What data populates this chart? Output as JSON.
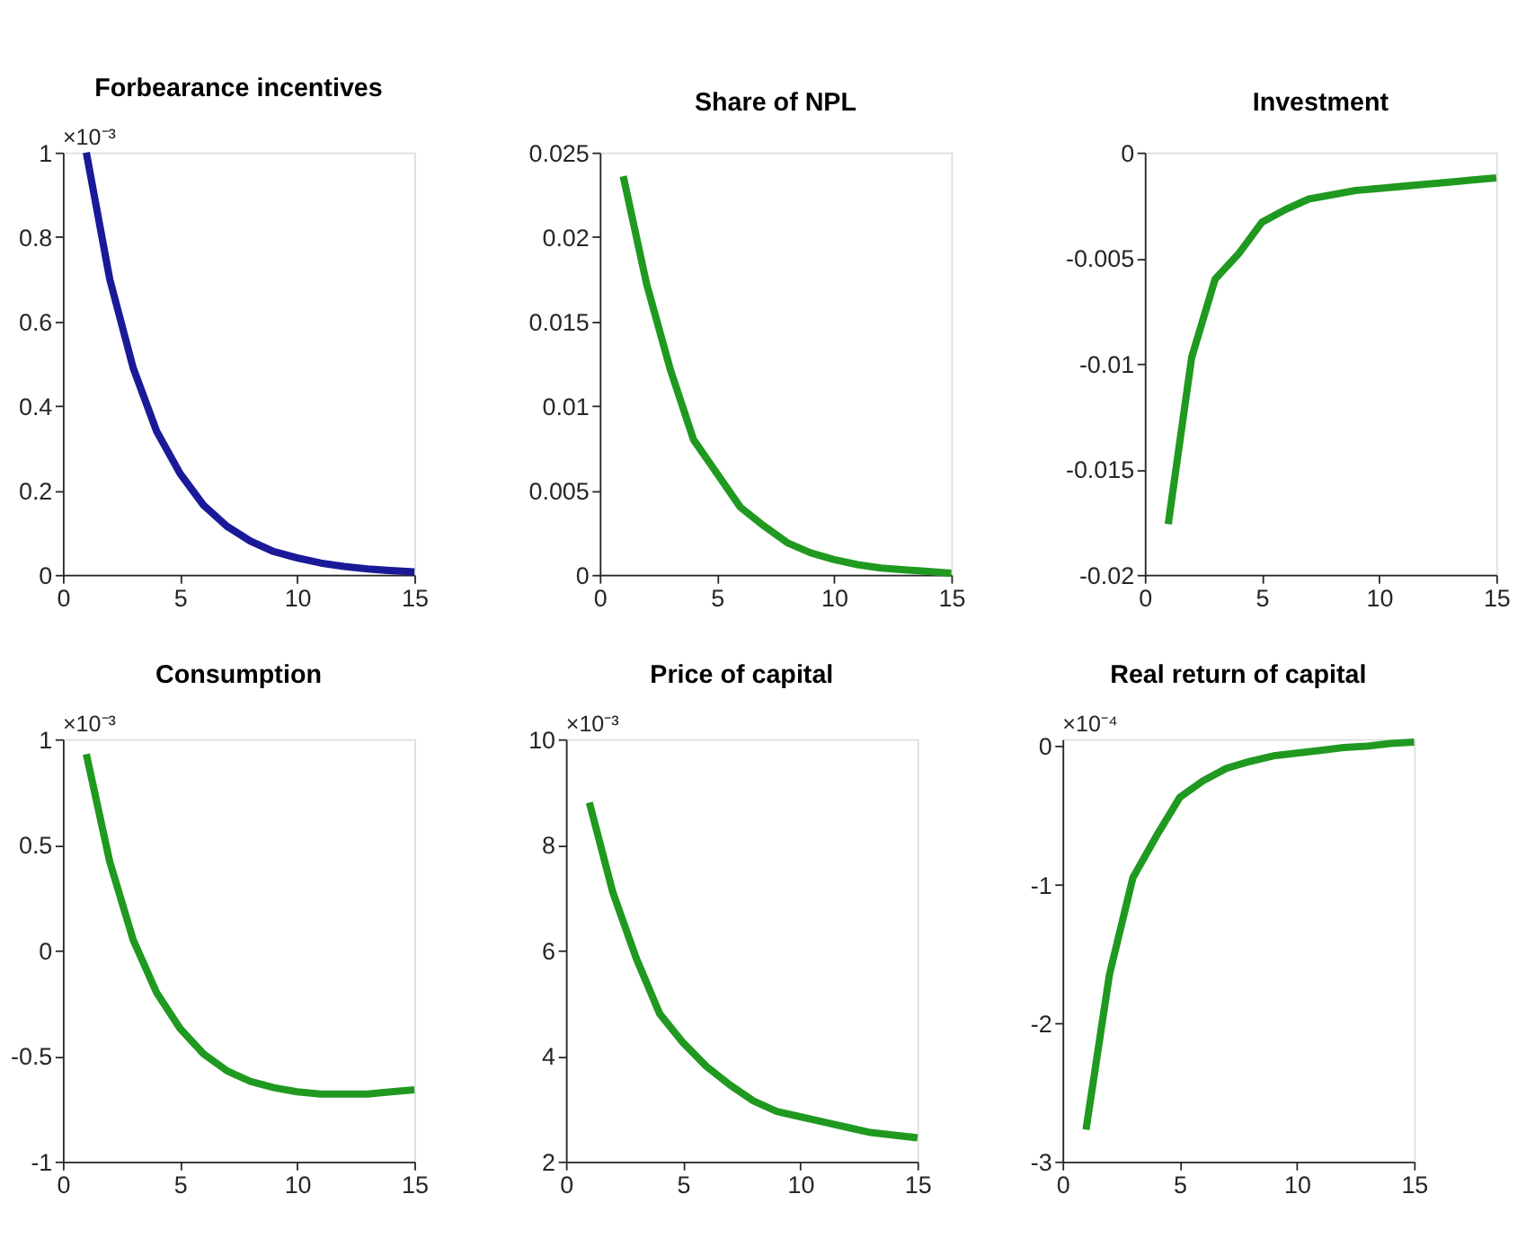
{
  "chart_data": [
    {
      "type": "line",
      "title": "Forbearance incentives",
      "annotations": [
        "×10⁻³"
      ],
      "x": [
        1,
        2,
        3,
        4,
        5,
        6,
        7,
        8,
        9,
        10,
        11,
        12,
        13,
        14,
        15
      ],
      "line_style": "solid",
      "series": [
        {
          "color": "#1a1a99",
          "values": [
            1.0,
            0.7,
            0.49,
            0.34,
            0.24,
            0.165,
            0.115,
            0.08,
            0.055,
            0.04,
            0.028,
            0.02,
            0.014,
            0.01,
            0.007
          ]
        }
      ],
      "xlim": [
        0,
        15
      ],
      "xticks": [
        0,
        5,
        10,
        15
      ],
      "ylim": [
        0,
        1
      ],
      "yticks": [
        0,
        0.2,
        0.4,
        0.6,
        0.8,
        1
      ]
    },
    {
      "type": "line",
      "title": "Share of NPL",
      "x": [
        1,
        2,
        3,
        4,
        5,
        6,
        7,
        8,
        9,
        10,
        11,
        12,
        13,
        14,
        15
      ],
      "line_style": "solid",
      "series": [
        {
          "color": "#1f991f",
          "values": [
            0.0236,
            0.0172,
            0.0122,
            0.008,
            0.006,
            0.004,
            0.0029,
            0.0019,
            0.0013,
            0.0009,
            0.0006,
            0.0004,
            0.0003,
            0.0002,
            0.0001
          ]
        }
      ],
      "xlim": [
        0,
        15
      ],
      "xticks": [
        0,
        5,
        10,
        15
      ],
      "ylim": [
        0,
        0.025
      ],
      "yticks": [
        0,
        0.005,
        0.01,
        0.015,
        0.02,
        0.025
      ]
    },
    {
      "type": "line",
      "title": "Investment",
      "x": [
        1,
        2,
        3,
        4,
        5,
        6,
        7,
        8,
        9,
        10,
        11,
        12,
        13,
        14,
        15
      ],
      "line_style": "solid",
      "series": [
        {
          "color": "#1f991f",
          "values": [
            -0.0176,
            -0.0097,
            -0.006,
            -0.0048,
            -0.0033,
            -0.0027,
            -0.0022,
            -0.002,
            -0.0018,
            -0.0017,
            -0.0016,
            -0.0015,
            -0.0014,
            -0.0013,
            -0.0012
          ]
        }
      ],
      "xlim": [
        0,
        15
      ],
      "xticks": [
        0,
        5,
        10,
        15
      ],
      "ylim": [
        -0.02,
        0
      ],
      "yticks": [
        -0.02,
        -0.015,
        -0.01,
        -0.005,
        0
      ]
    },
    {
      "type": "line",
      "title": "Consumption",
      "annotations": [
        "×10⁻³"
      ],
      "x": [
        1,
        2,
        3,
        4,
        5,
        6,
        7,
        8,
        9,
        10,
        11,
        12,
        13,
        14,
        15
      ],
      "line_style": "solid",
      "series": [
        {
          "color": "#1f991f",
          "values": [
            0.93,
            0.42,
            0.05,
            -0.2,
            -0.37,
            -0.49,
            -0.57,
            -0.62,
            -0.65,
            -0.67,
            -0.68,
            -0.68,
            -0.68,
            -0.67,
            -0.66
          ]
        }
      ],
      "xlim": [
        0,
        15
      ],
      "xticks": [
        0,
        5,
        10,
        15
      ],
      "ylim": [
        -1,
        1
      ],
      "yticks": [
        -1,
        -0.5,
        0,
        0.5,
        1
      ]
    },
    {
      "type": "line",
      "title": "Price of capital",
      "annotations": [
        "×10⁻³"
      ],
      "x": [
        1,
        2,
        3,
        4,
        5,
        6,
        7,
        8,
        9,
        10,
        11,
        12,
        13,
        14,
        15
      ],
      "line_style": "solid",
      "series": [
        {
          "color": "#1f991f",
          "values": [
            8.8,
            7.1,
            5.85,
            4.8,
            4.25,
            3.8,
            3.45,
            3.15,
            2.95,
            2.85,
            2.75,
            2.65,
            2.55,
            2.5,
            2.45
          ]
        }
      ],
      "xlim": [
        0,
        15
      ],
      "xticks": [
        0,
        5,
        10,
        15
      ],
      "ylim": [
        2,
        10
      ],
      "yticks": [
        2,
        4,
        6,
        8,
        10
      ]
    },
    {
      "type": "line",
      "title": "Real return of capital",
      "annotations": [
        "×10⁻⁴"
      ],
      "x": [
        1,
        2,
        3,
        4,
        5,
        6,
        7,
        8,
        9,
        10,
        11,
        12,
        13,
        14,
        15
      ],
      "line_style": "solid",
      "series": [
        {
          "color": "#1f991f",
          "values": [
            -2.77,
            -1.65,
            -0.95,
            -0.65,
            -0.37,
            -0.25,
            -0.16,
            -0.11,
            -0.07,
            -0.05,
            -0.03,
            -0.01,
            0.0,
            0.02,
            0.03
          ]
        }
      ],
      "xlim": [
        0,
        15
      ],
      "xticks": [
        0,
        5,
        10,
        15
      ],
      "ylim": [
        -3,
        0.05
      ],
      "yticks": [
        -3,
        -2,
        -1,
        0
      ]
    }
  ]
}
